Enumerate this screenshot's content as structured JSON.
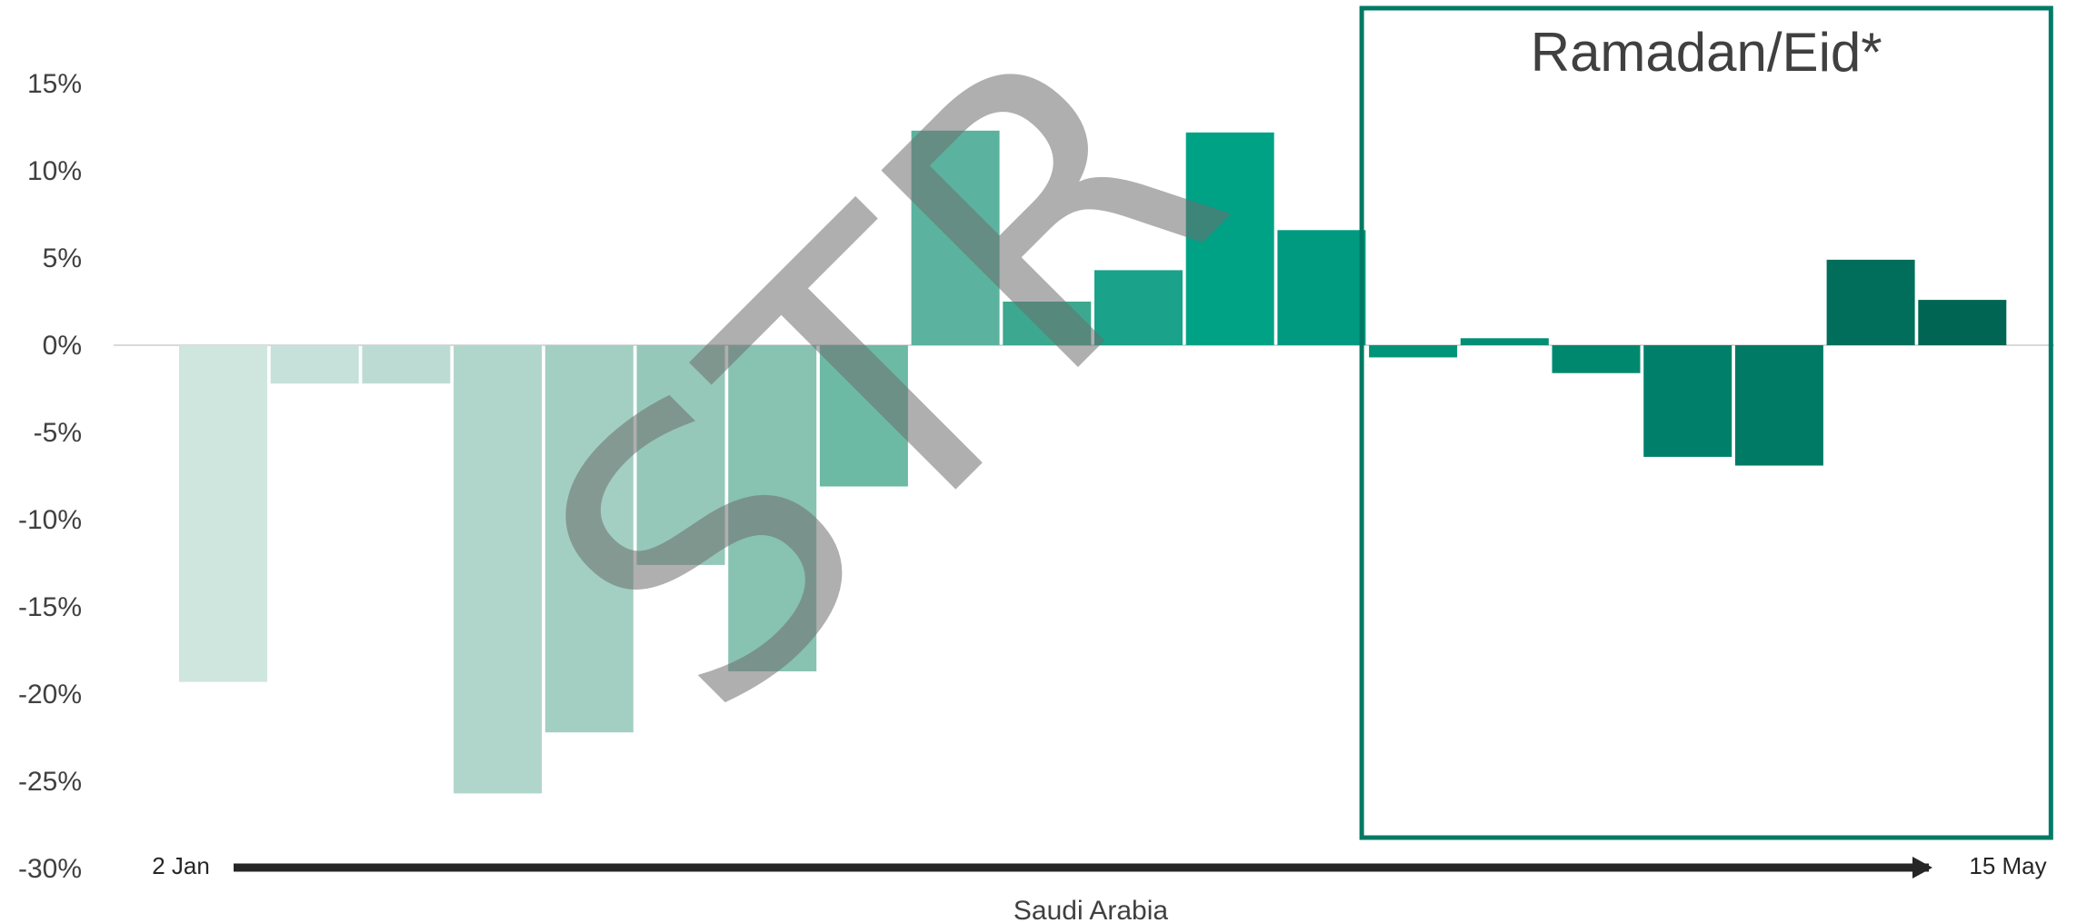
{
  "chart_data": {
    "type": "bar",
    "xlabel": "Saudi Arabia",
    "ylabel": "",
    "ylim": [
      -30,
      18
    ],
    "yticks": [
      15,
      10,
      5,
      0,
      -5,
      -10,
      -15,
      -20,
      -25,
      -30
    ],
    "ytick_labels": [
      "15%",
      "10%",
      "5%",
      "0%",
      "-5%",
      "-10%",
      "-15%",
      "-20%",
      "-25%",
      "-30%"
    ],
    "values": [
      -19.3,
      -2.2,
      -2.2,
      -25.7,
      -22.2,
      -12.6,
      -18.7,
      -8.1,
      12.3,
      2.5,
      4.3,
      12.2,
      6.6,
      -0.7,
      0.4,
      -1.6,
      -6.4,
      -6.9,
      4.9,
      2.6
    ],
    "colors": [
      "#cfe6df",
      "#c5e1d9",
      "#bcdcd3",
      "#b0d6cb",
      "#a3cfc2",
      "#96c8b9",
      "#88c2b1",
      "#6cb9a4",
      "#5bb39f",
      "#3ca88f",
      "#1aa28a",
      "#00a286",
      "#009a80",
      "#009478",
      "#008e74",
      "#00886f",
      "#00806a",
      "#007a65",
      "#006e5b",
      "#006653"
    ],
    "grid": false,
    "legend": "none",
    "axis_start_label": "2 Jan",
    "axis_end_label": "15 May",
    "annotation": {
      "text": "Ramadan/Eid*",
      "first_bar": 13,
      "last_bar": 19,
      "border_color": "#007a65"
    },
    "watermark": "STR",
    "zero_line_color": "#d9d9d9",
    "arrow_color": "#262626"
  }
}
